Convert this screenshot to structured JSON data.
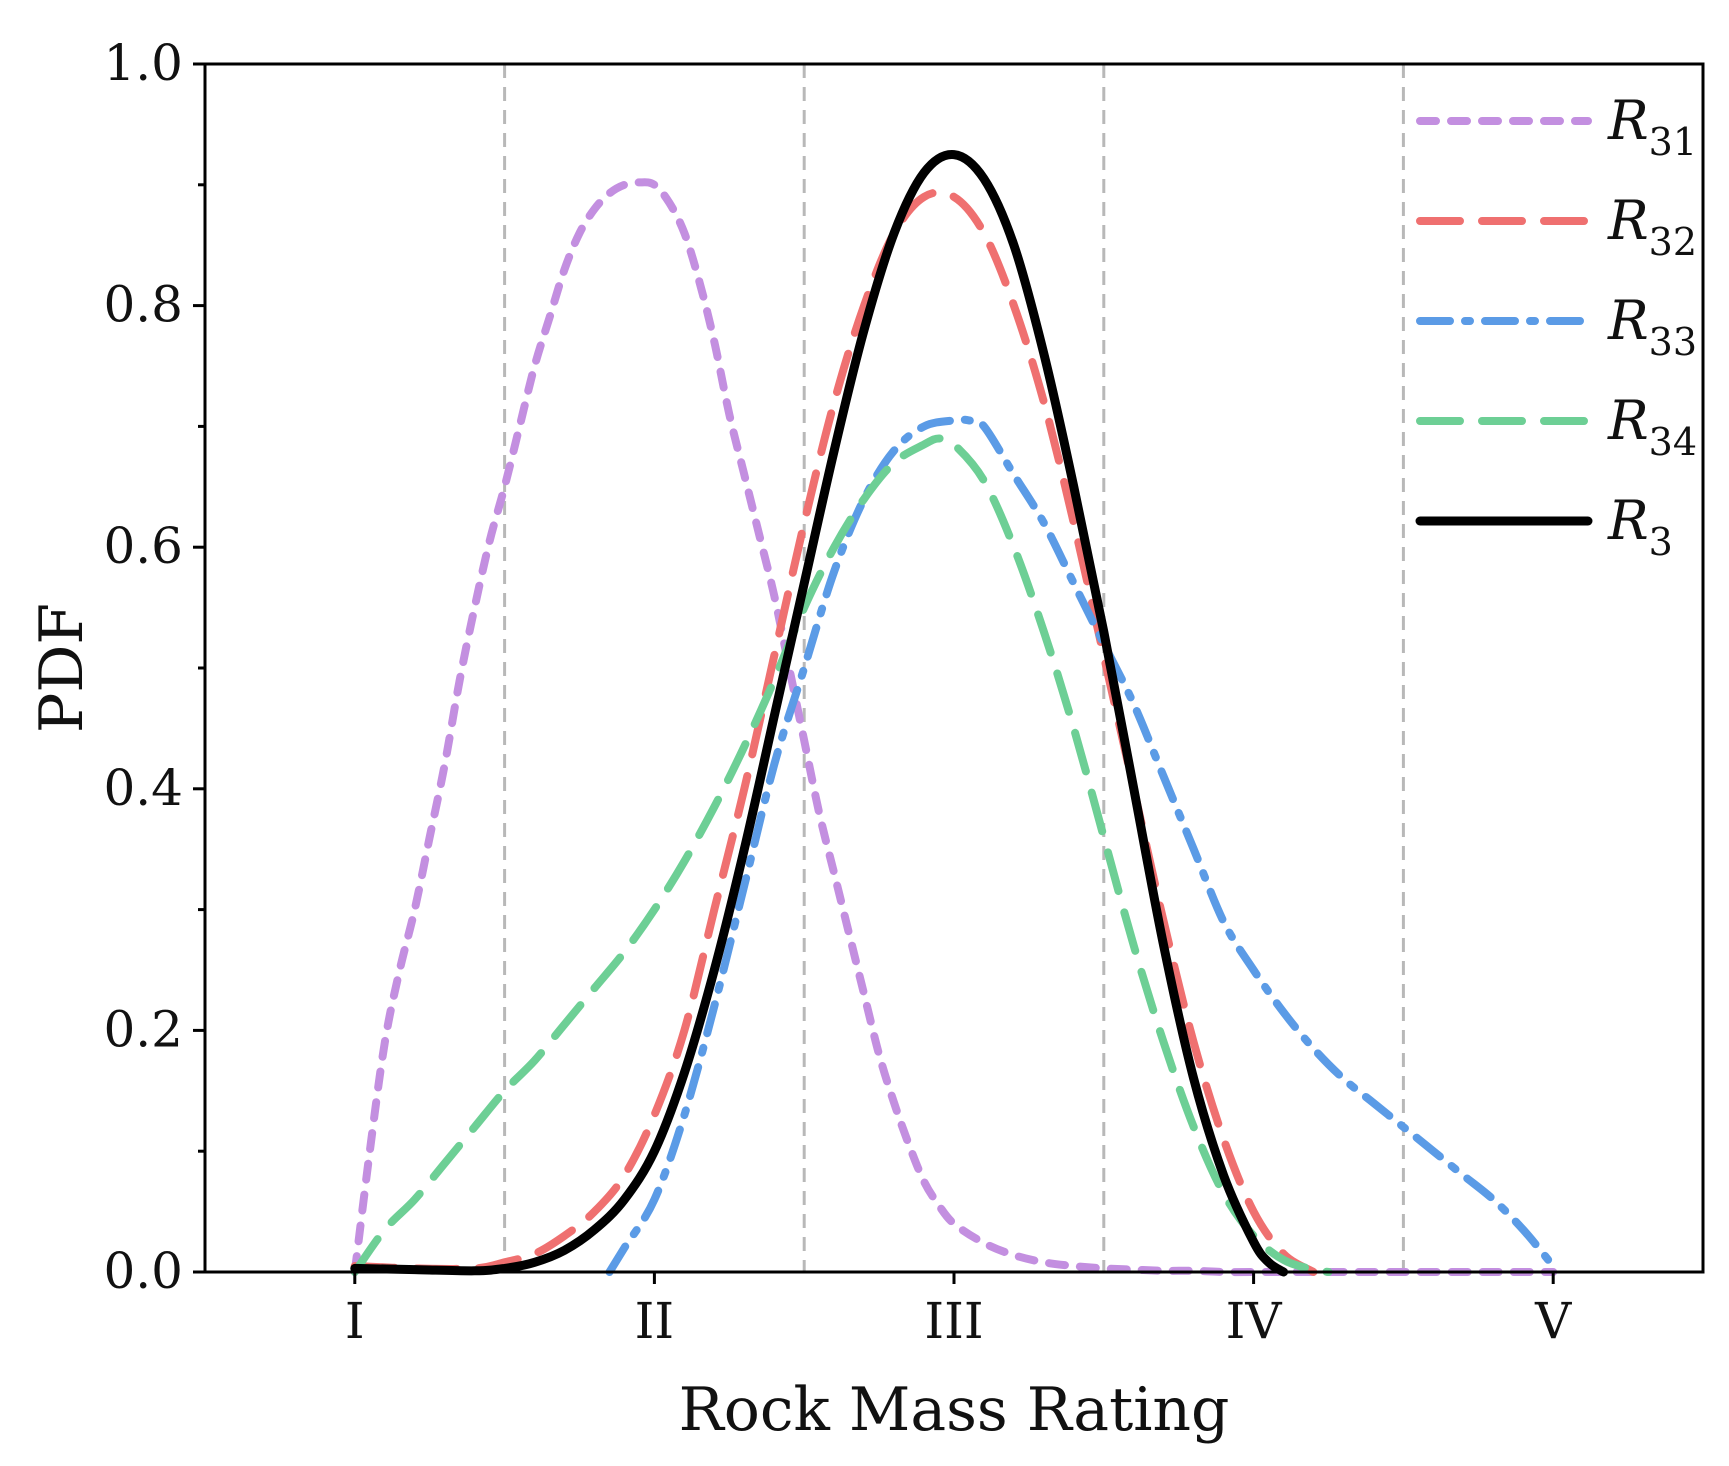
{
  "chart_data": {
    "type": "line",
    "title": "",
    "xlabel": "Rock Mass Rating",
    "ylabel": "PDF",
    "xlim": [
      0.5,
      5.5
    ],
    "ylim": [
      0.0,
      1.0
    ],
    "x_ticks": [
      1,
      2,
      3,
      4,
      5
    ],
    "x_tick_labels": [
      "I",
      "II",
      "III",
      "IV",
      "V"
    ],
    "y_ticks": [
      0.0,
      0.2,
      0.4,
      0.6,
      0.8,
      1.0
    ],
    "y_tick_labels": [
      "0.0",
      "0.2",
      "0.4",
      "0.6",
      "0.8",
      "1.0"
    ],
    "vertical_grid_lines_at": [
      1.5,
      2.5,
      3.5,
      4.5
    ],
    "legend_position": "top-right",
    "series": [
      {
        "name": "R31",
        "legend_base": "R",
        "legend_sub": "31",
        "color": "#c38fe0",
        "style": "short-dash",
        "x": [
          1.0,
          1.05,
          1.1,
          1.15,
          1.2,
          1.25,
          1.3,
          1.35,
          1.4,
          1.45,
          1.5,
          1.55,
          1.6,
          1.65,
          1.7,
          1.75,
          1.8,
          1.85,
          1.9,
          1.95,
          2.0,
          2.05,
          2.1,
          2.15,
          2.2,
          2.25,
          2.3,
          2.35,
          2.4,
          2.45,
          2.5,
          2.55,
          2.6,
          2.65,
          2.7,
          2.75,
          2.8,
          2.85,
          2.9,
          2.95,
          3.0,
          3.1,
          3.2,
          3.3,
          3.4,
          3.5,
          3.6,
          3.7,
          3.8,
          3.9,
          4.0,
          4.2,
          4.4,
          4.6,
          4.8,
          5.0
        ],
        "y": [
          0.0,
          0.1,
          0.19,
          0.25,
          0.3,
          0.36,
          0.42,
          0.49,
          0.55,
          0.605,
          0.65,
          0.7,
          0.75,
          0.79,
          0.83,
          0.86,
          0.88,
          0.893,
          0.9,
          0.902,
          0.9,
          0.885,
          0.86,
          0.82,
          0.77,
          0.71,
          0.66,
          0.61,
          0.56,
          0.5,
          0.44,
          0.38,
          0.33,
          0.28,
          0.23,
          0.18,
          0.14,
          0.105,
          0.075,
          0.055,
          0.04,
          0.024,
          0.014,
          0.008,
          0.005,
          0.003,
          0.002,
          0.001,
          0.001,
          0.0,
          0.0,
          0.0,
          0.0,
          0.0,
          0.0,
          0.0
        ]
      },
      {
        "name": "R32",
        "legend_base": "R",
        "legend_sub": "32",
        "color": "#ef7070",
        "style": "long-dash",
        "x": [
          1.0,
          1.2,
          1.4,
          1.5,
          1.6,
          1.7,
          1.8,
          1.9,
          2.0,
          2.1,
          2.2,
          2.3,
          2.4,
          2.5,
          2.6,
          2.7,
          2.8,
          2.9,
          3.0,
          3.1,
          3.2,
          3.3,
          3.4,
          3.5,
          3.6,
          3.7,
          3.8,
          3.9,
          4.0,
          4.1,
          4.2
        ],
        "y": [
          0.005,
          0.003,
          0.003,
          0.008,
          0.015,
          0.03,
          0.05,
          0.08,
          0.13,
          0.2,
          0.3,
          0.4,
          0.51,
          0.62,
          0.72,
          0.8,
          0.86,
          0.89,
          0.89,
          0.86,
          0.8,
          0.72,
          0.62,
          0.51,
          0.4,
          0.29,
          0.19,
          0.11,
          0.05,
          0.015,
          0.0
        ]
      },
      {
        "name": "R33",
        "legend_base": "R",
        "legend_sub": "33",
        "color": "#5b9be6",
        "style": "dash-dot",
        "x": [
          1.85,
          1.9,
          2.0,
          2.1,
          2.2,
          2.3,
          2.4,
          2.5,
          2.6,
          2.7,
          2.8,
          2.9,
          3.0,
          3.05,
          3.1,
          3.2,
          3.3,
          3.4,
          3.5,
          3.6,
          3.7,
          3.8,
          3.9,
          4.0,
          4.1,
          4.2,
          4.3,
          4.4,
          4.5,
          4.6,
          4.7,
          4.8,
          4.9,
          5.0
        ],
        "y": [
          0.0,
          0.02,
          0.06,
          0.13,
          0.22,
          0.32,
          0.42,
          0.5,
          0.58,
          0.64,
          0.68,
          0.7,
          0.705,
          0.705,
          0.7,
          0.66,
          0.62,
          0.57,
          0.52,
          0.47,
          0.41,
          0.35,
          0.29,
          0.25,
          0.215,
          0.185,
          0.16,
          0.14,
          0.12,
          0.1,
          0.08,
          0.06,
          0.035,
          0.005
        ]
      },
      {
        "name": "R34",
        "legend_base": "R",
        "legend_sub": "34",
        "color": "#6dcf95",
        "style": "long-dash",
        "x": [
          1.0,
          1.1,
          1.2,
          1.3,
          1.4,
          1.5,
          1.6,
          1.7,
          1.8,
          1.9,
          2.0,
          2.1,
          2.2,
          2.3,
          2.4,
          2.5,
          2.6,
          2.7,
          2.8,
          2.9,
          2.95,
          3.0,
          3.1,
          3.2,
          3.3,
          3.4,
          3.5,
          3.6,
          3.7,
          3.8,
          3.9,
          4.0,
          4.1,
          4.2,
          4.25
        ],
        "y": [
          0.0,
          0.035,
          0.06,
          0.09,
          0.12,
          0.15,
          0.175,
          0.205,
          0.235,
          0.265,
          0.3,
          0.34,
          0.385,
          0.435,
          0.49,
          0.55,
          0.6,
          0.64,
          0.67,
          0.685,
          0.69,
          0.685,
          0.655,
          0.6,
          0.53,
          0.45,
          0.36,
          0.27,
          0.19,
          0.12,
          0.065,
          0.03,
          0.01,
          0.002,
          0.0
        ]
      },
      {
        "name": "R3",
        "legend_base": "R",
        "legend_sub": "3",
        "color": "#000000",
        "style": "solid",
        "x": [
          1.0,
          1.2,
          1.4,
          1.5,
          1.6,
          1.7,
          1.8,
          1.9,
          2.0,
          2.1,
          2.2,
          2.3,
          2.4,
          2.5,
          2.6,
          2.7,
          2.8,
          2.9,
          3.0,
          3.1,
          3.2,
          3.3,
          3.4,
          3.5,
          3.6,
          3.7,
          3.8,
          3.9,
          4.0,
          4.05,
          4.1
        ],
        "y": [
          0.003,
          0.002,
          0.001,
          0.003,
          0.008,
          0.018,
          0.035,
          0.06,
          0.1,
          0.165,
          0.25,
          0.35,
          0.46,
          0.57,
          0.68,
          0.78,
          0.86,
          0.91,
          0.925,
          0.905,
          0.85,
          0.76,
          0.65,
          0.53,
          0.4,
          0.27,
          0.16,
          0.08,
          0.025,
          0.008,
          0.0
        ]
      }
    ]
  }
}
